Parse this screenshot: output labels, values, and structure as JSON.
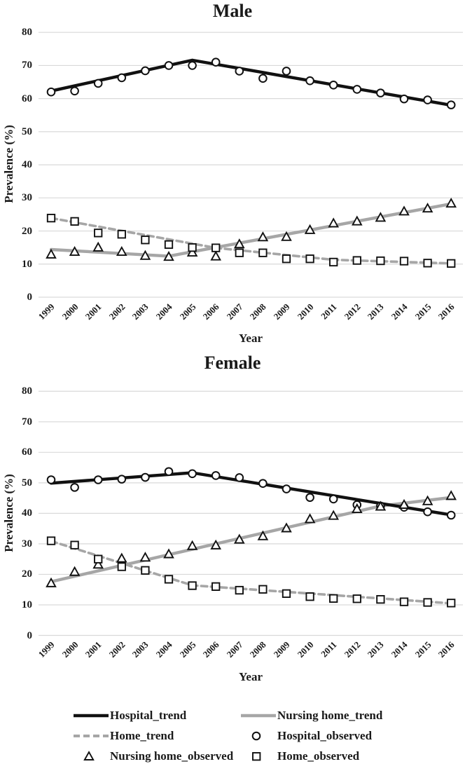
{
  "figure": {
    "colors": {
      "black": "#111111",
      "gray": "#a6a6a6",
      "gridline": "#d9d9d9",
      "text": "#1a1a1a",
      "marker_fill": "#ffffff"
    }
  },
  "chart_data": [
    {
      "type": "line",
      "title": "Male",
      "xlabel": "Year",
      "ylabel": "Prevalence (%)",
      "ylim": [
        0,
        80
      ],
      "yticks": [
        0,
        10,
        20,
        30,
        40,
        50,
        60,
        70,
        80
      ],
      "grid": "horizontal",
      "x": [
        1999,
        2000,
        2001,
        2002,
        2003,
        2004,
        2005,
        2006,
        2007,
        2008,
        2009,
        2010,
        2011,
        2012,
        2013,
        2014,
        2015,
        2016
      ],
      "series": [
        {
          "name": "Hospital_trend",
          "kind": "trend",
          "line_style": "solid",
          "color": "#111111",
          "marker": null,
          "x": [
            1999,
            2005,
            2016
          ],
          "values": [
            62.3,
            71.6,
            58.0
          ]
        },
        {
          "name": "Nursing home_trend",
          "kind": "trend",
          "line_style": "solid",
          "color": "#a6a6a6",
          "marker": null,
          "x": [
            1999,
            2004,
            2016
          ],
          "values": [
            14.4,
            12.4,
            28.2
          ]
        },
        {
          "name": "Home_trend",
          "kind": "trend",
          "line_style": "dashed",
          "color": "#a6a6a6",
          "marker": null,
          "x": [
            1999,
            2006,
            2011,
            2016
          ],
          "values": [
            23.9,
            14.9,
            11.3,
            10.2
          ]
        },
        {
          "name": "Hospital_observed",
          "kind": "observed",
          "line_style": "none",
          "color": "#111111",
          "marker": "circle",
          "values": [
            62.0,
            62.3,
            64.6,
            66.3,
            68.4,
            70.0,
            70.0,
            71.0,
            68.3,
            66.1,
            68.3,
            65.4,
            64.1,
            62.8,
            61.7,
            59.9,
            59.6,
            58.1
          ]
        },
        {
          "name": "Nursing home_observed",
          "kind": "observed",
          "line_style": "none",
          "color": "#111111",
          "marker": "triangle",
          "values": [
            12.9,
            13.7,
            15.0,
            13.7,
            12.5,
            12.2,
            13.5,
            12.3,
            16.0,
            18.1,
            18.2,
            20.3,
            22.3,
            22.9,
            24.0,
            25.9,
            26.8,
            28.3
          ]
        },
        {
          "name": "Home_observed",
          "kind": "observed",
          "line_style": "none",
          "color": "#111111",
          "marker": "square",
          "values": [
            23.9,
            22.9,
            19.4,
            19.0,
            17.3,
            15.9,
            15.0,
            14.9,
            13.4,
            13.4,
            11.6,
            11.6,
            10.6,
            11.1,
            11.0,
            10.9,
            10.3,
            10.2
          ]
        }
      ]
    },
    {
      "type": "line",
      "title": "Female",
      "xlabel": "Year",
      "ylabel": "Prevalence (%)",
      "ylim": [
        0,
        80
      ],
      "yticks": [
        0,
        10,
        20,
        30,
        40,
        50,
        60,
        70,
        80
      ],
      "grid": "horizontal",
      "x": [
        1999,
        2000,
        2001,
        2002,
        2003,
        2004,
        2005,
        2006,
        2007,
        2008,
        2009,
        2010,
        2011,
        2012,
        2013,
        2014,
        2015,
        2016
      ],
      "series": [
        {
          "name": "Hospital_trend",
          "kind": "trend",
          "line_style": "solid",
          "color": "#111111",
          "marker": null,
          "x": [
            1999,
            2005,
            2016
          ],
          "values": [
            49.9,
            53.3,
            39.5
          ]
        },
        {
          "name": "Nursing home_trend",
          "kind": "trend",
          "line_style": "solid",
          "color": "#a6a6a6",
          "marker": null,
          "x": [
            1999,
            2013,
            2016
          ],
          "values": [
            17.6,
            42.4,
            45.2
          ]
        },
        {
          "name": "Home_trend",
          "kind": "trend",
          "line_style": "dashed",
          "color": "#a6a6a6",
          "marker": null,
          "x": [
            1999,
            2005,
            2016
          ],
          "values": [
            30.9,
            16.4,
            10.5
          ]
        },
        {
          "name": "Hospital_observed",
          "kind": "observed",
          "line_style": "none",
          "color": "#111111",
          "marker": "circle",
          "values": [
            51.0,
            48.5,
            51.0,
            51.2,
            51.8,
            53.7,
            53.0,
            52.4,
            51.7,
            49.8,
            48.0,
            45.2,
            44.7,
            42.8,
            42.4,
            42.0,
            40.5,
            39.4
          ]
        },
        {
          "name": "Nursing home_observed",
          "kind": "observed",
          "line_style": "none",
          "color": "#111111",
          "marker": "triangle",
          "values": [
            17.1,
            20.8,
            23.2,
            25.2,
            25.5,
            26.6,
            29.3,
            29.5,
            31.4,
            32.5,
            35.1,
            38.1,
            39.2,
            41.4,
            42.2,
            42.8,
            44.0,
            45.7
          ]
        },
        {
          "name": "Home_observed",
          "kind": "observed",
          "line_style": "none",
          "color": "#111111",
          "marker": "square",
          "values": [
            31.0,
            29.6,
            25.0,
            22.5,
            21.3,
            18.4,
            16.3,
            16.0,
            14.8,
            15.1,
            13.7,
            12.7,
            12.1,
            12.0,
            11.8,
            11.0,
            10.8,
            10.6
          ]
        }
      ]
    }
  ],
  "legend": {
    "items": [
      {
        "label": "Hospital_trend",
        "swatch": "line-solid-black"
      },
      {
        "label": "Nursing home_trend",
        "swatch": "line-solid-gray"
      },
      {
        "label": "Home_trend",
        "swatch": "line-dashed-gray"
      },
      {
        "label": "Hospital_observed",
        "swatch": "marker-circle"
      },
      {
        "label": "Nursing home_observed",
        "swatch": "marker-triangle"
      },
      {
        "label": "Home_observed",
        "swatch": "marker-square"
      }
    ]
  }
}
